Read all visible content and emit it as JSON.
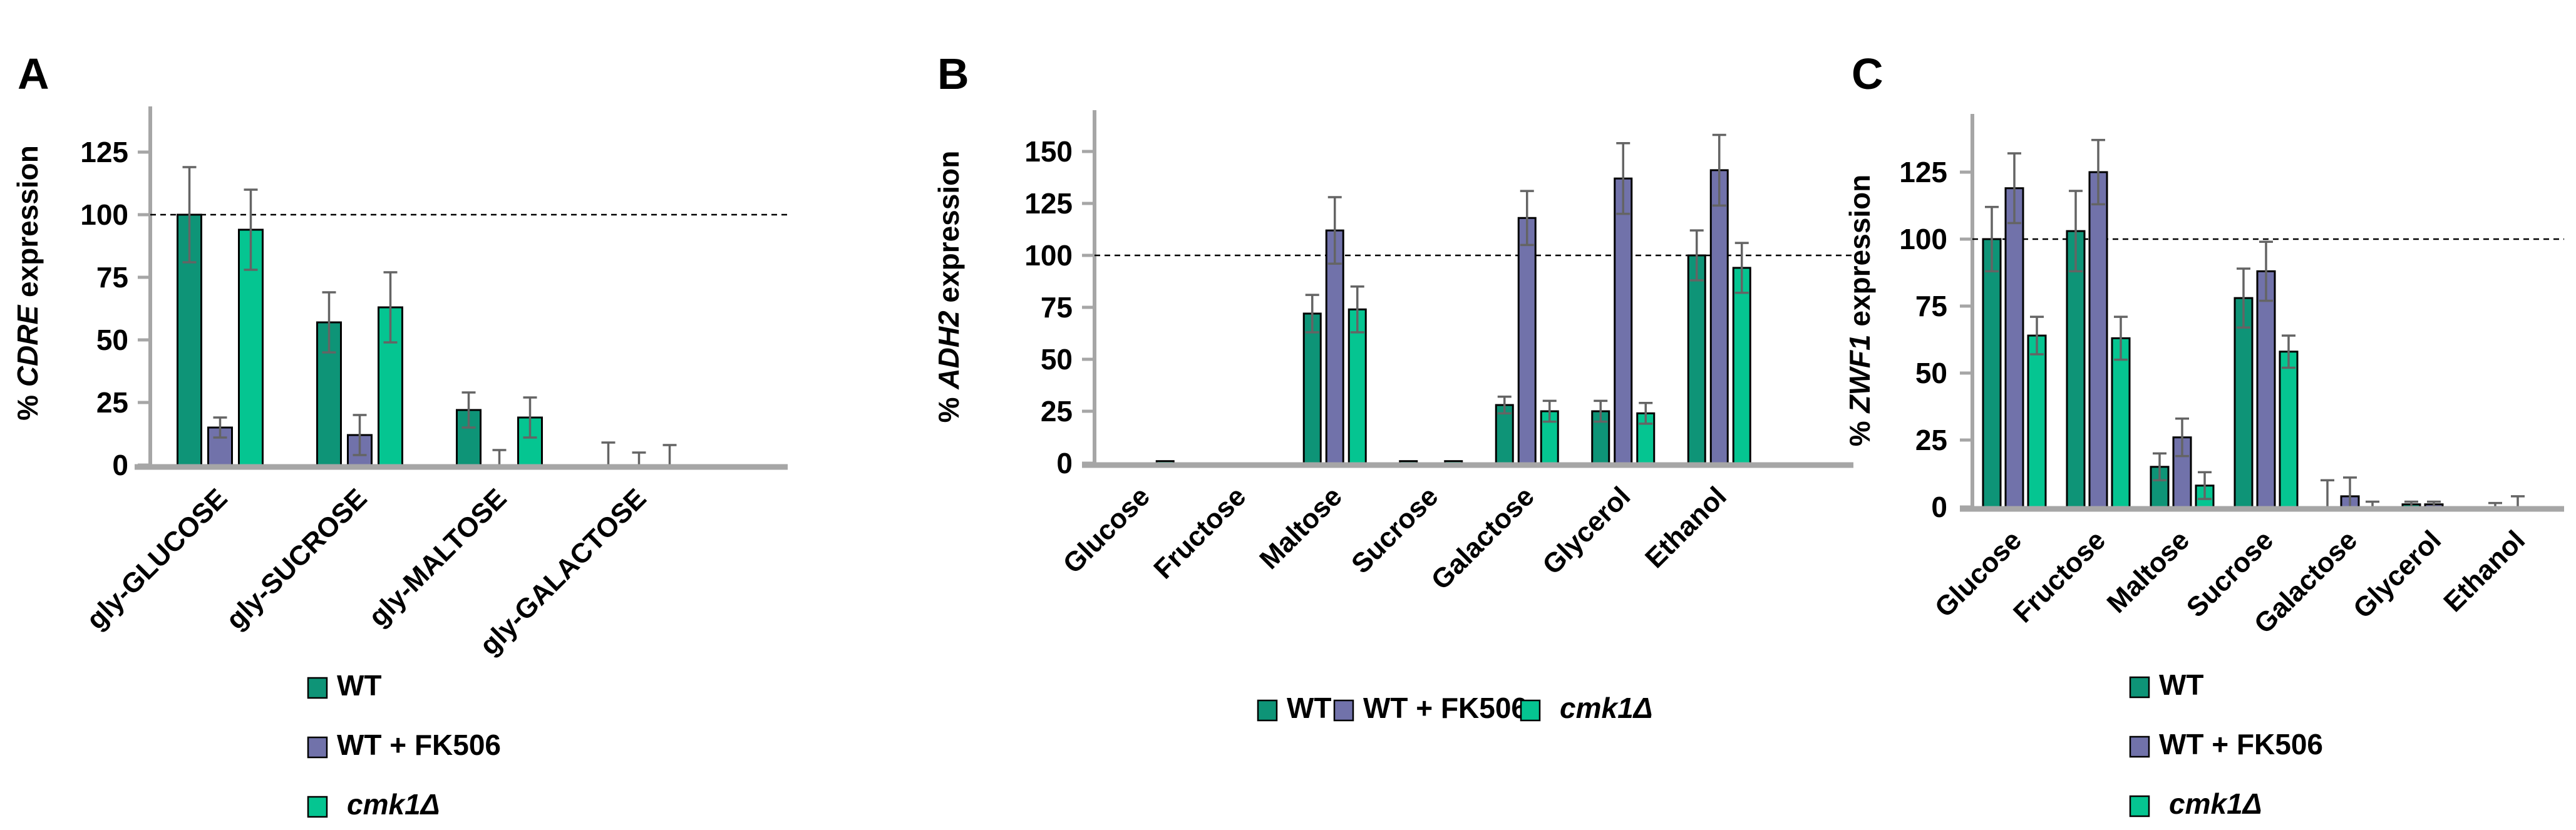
{
  "figure_title": "",
  "colors": {
    "wt": "#0E9477",
    "wt_fk506": "#7172AA",
    "cmk1": "#05C591",
    "bar_outline": "#000000",
    "error_bar": "#646464",
    "axis": "#A6A6A6",
    "reference_line": "#000000",
    "text": "#000000",
    "background": "#FFFFFF"
  },
  "legend_labels": [
    "WT",
    "WT + FK506",
    "cmk1Δ"
  ],
  "chart_data": [
    {
      "panel": "A",
      "type": "bar",
      "title": "",
      "ylabel": "% CDRE expression",
      "ylabel_parts": {
        "prefix": "% ",
        "gene_italic": "CDRE",
        "suffix": " expression"
      },
      "xlabel": "",
      "categories": [
        "gly-GLUCOSE",
        "gly-SUCROSE",
        "gly-MALTOSE",
        "gly-GALACTOSE"
      ],
      "series": [
        {
          "name": "WT",
          "color_key": "wt",
          "italic": false,
          "values": [
            100,
            57,
            22,
            0
          ],
          "errors": [
            19,
            12,
            7,
            9
          ]
        },
        {
          "name": "WT + FK506",
          "color_key": "wt_fk506",
          "italic": false,
          "values": [
            15,
            12,
            0,
            0
          ],
          "errors": [
            4,
            8,
            6,
            5
          ]
        },
        {
          "name": "cmk1Δ",
          "color_key": "cmk1",
          "italic": true,
          "values": [
            94,
            63,
            19,
            0
          ],
          "errors": [
            16,
            14,
            8,
            8
          ]
        }
      ],
      "yticks": [
        0,
        25,
        50,
        75,
        100,
        125
      ],
      "ylim": [
        0,
        143
      ],
      "ref_line": 100,
      "grid": false,
      "legend_position": "below-vertical"
    },
    {
      "panel": "B",
      "type": "bar",
      "title": "",
      "ylabel": "% ADH2 expression",
      "ylabel_parts": {
        "prefix": "% ",
        "gene_italic": "ADH2",
        "suffix": " expression"
      },
      "xlabel": "",
      "categories": [
        "Glucose",
        "Fructose",
        "Maltose",
        "Sucrose",
        "Galactose",
        "Glycerol",
        "Ethanol"
      ],
      "series": [
        {
          "name": "WT",
          "color_key": "wt",
          "italic": false,
          "values": [
            0,
            0,
            72,
            1,
            28,
            25,
            100
          ],
          "errors": [
            0,
            0,
            9,
            0,
            4,
            5,
            12
          ]
        },
        {
          "name": "WT + FK506",
          "color_key": "wt_fk506",
          "italic": false,
          "values": [
            0,
            0,
            112,
            0,
            118,
            137,
            141
          ],
          "errors": [
            0,
            0,
            16,
            0,
            13,
            17,
            17
          ]
        },
        {
          "name": "cmk1Δ",
          "color_key": "cmk1",
          "italic": true,
          "values": [
            1,
            0,
            74,
            1,
            25,
            24,
            94
          ],
          "errors": [
            0,
            0,
            11,
            0,
            5,
            5,
            12
          ]
        }
      ],
      "yticks": [
        0,
        25,
        50,
        75,
        100,
        125,
        150
      ],
      "ylim": [
        0,
        170
      ],
      "ref_line": 100,
      "grid": false,
      "legend_position": "below-horizontal"
    },
    {
      "panel": "C",
      "type": "bar",
      "title": "",
      "ylabel": "% ZWF1 expression",
      "ylabel_parts": {
        "prefix": "% ",
        "gene_italic": "ZWF1",
        "suffix": " expression"
      },
      "xlabel": "",
      "categories": [
        "Glucose",
        "Fructose",
        "Maltose",
        "Sucrose",
        "Galactose",
        "Glycerol",
        "Ethanol"
      ],
      "series": [
        {
          "name": "WT",
          "color_key": "wt",
          "italic": false,
          "values": [
            100,
            103,
            15,
            78,
            0,
            1,
            0
          ],
          "errors": [
            12,
            15,
            5,
            11,
            10,
            1,
            1.5
          ]
        },
        {
          "name": "WT + FK506",
          "color_key": "wt_fk506",
          "italic": false,
          "values": [
            119,
            125,
            26,
            88,
            4,
            1,
            0
          ],
          "errors": [
            13,
            12,
            7,
            11,
            7,
            1,
            4
          ]
        },
        {
          "name": "cmk1Δ",
          "color_key": "cmk1",
          "italic": true,
          "values": [
            64,
            63,
            8,
            58,
            0,
            0,
            0
          ],
          "errors": [
            7,
            8,
            5,
            6,
            2,
            0,
            0
          ]
        }
      ],
      "yticks": [
        0,
        25,
        50,
        75,
        100,
        125
      ],
      "ylim": [
        0,
        146
      ],
      "ref_line": 100,
      "grid": false,
      "legend_position": "below-vertical"
    }
  ]
}
